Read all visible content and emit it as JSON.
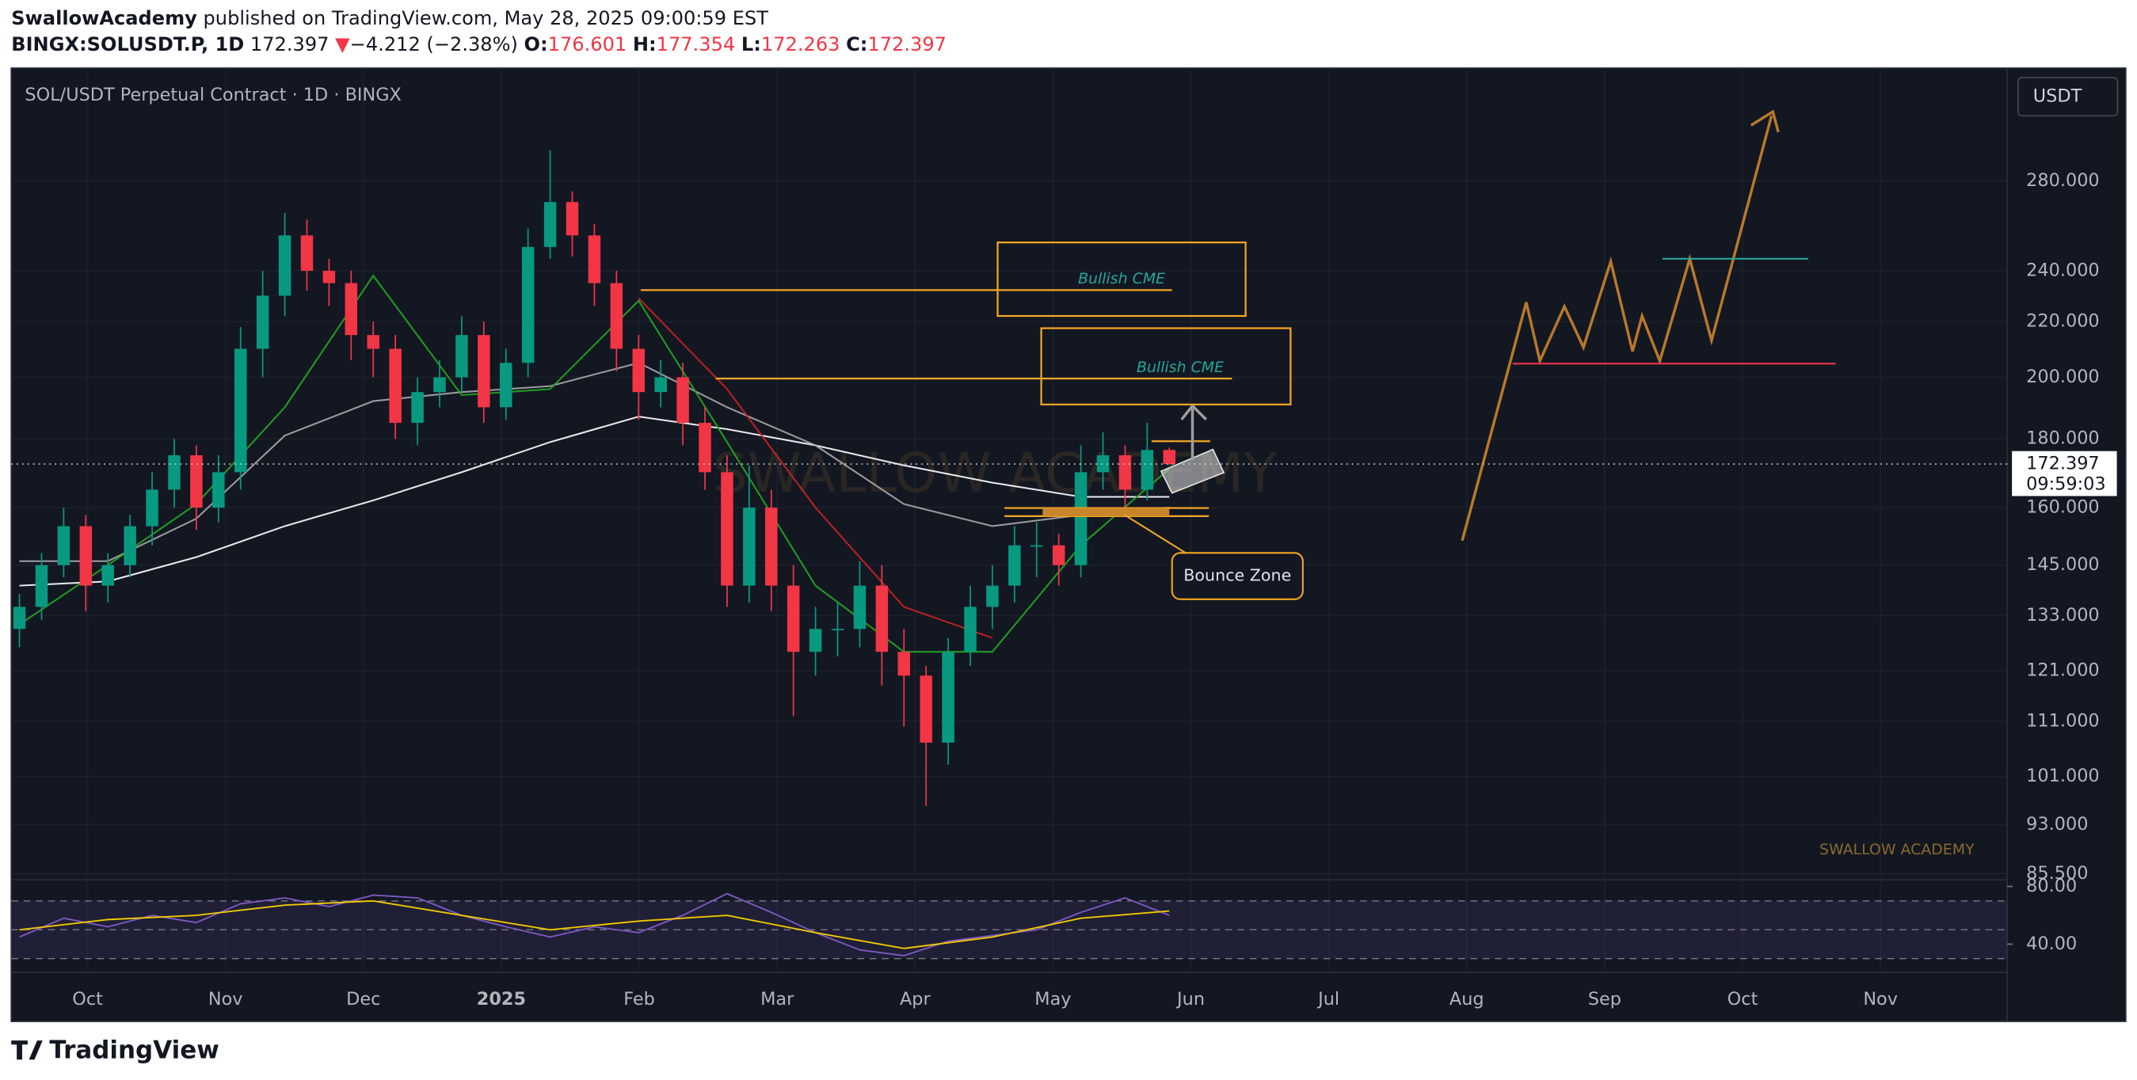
{
  "header": {
    "author": "SwallowAcademy",
    "published": "published on TradingView.com, May 28, 2025 09:00:59 EST",
    "symbol": "BINGX:SOLUSDT.P, 1D",
    "last": "172.397",
    "arrow": "▼",
    "change": "−4.212 (−2.38%)",
    "o_label": "O:",
    "o": "176.601",
    "h_label": "H:",
    "h": "177.354",
    "l_label": "L:",
    "l": "172.263",
    "c_label": "C:",
    "c": "172.397"
  },
  "footer": {
    "brand": "TradingView"
  },
  "chart_data": {
    "type": "candlestick",
    "title": "SOL/USDT Perpetual Contract · 1D · BINGX",
    "currency": "USDT",
    "log_scale": true,
    "grid": true,
    "up_color": "#089981",
    "down_color": "#f23645",
    "ylim": [
      84.8,
      338
    ],
    "yticks": [
      {
        "value": 280,
        "label": "280.000"
      },
      {
        "value": 240,
        "label": "240.000"
      },
      {
        "value": 220,
        "label": "220.000"
      },
      {
        "value": 200,
        "label": "200.000"
      },
      {
        "value": 180,
        "label": "180.000"
      },
      {
        "value": 160,
        "label": "160.000"
      },
      {
        "value": 145,
        "label": "145.000"
      },
      {
        "value": 133,
        "label": "133.000"
      },
      {
        "value": 121,
        "label": "121.000"
      },
      {
        "value": 111,
        "label": "111.000"
      },
      {
        "value": 101,
        "label": "101.000"
      },
      {
        "value": 93,
        "label": "93.000"
      },
      {
        "value": 85.5,
        "label": "85.500"
      }
    ],
    "xticks": [
      {
        "value": "2024-10",
        "label": "Oct"
      },
      {
        "value": "2024-11",
        "label": "Nov"
      },
      {
        "value": "2024-12",
        "label": "Dec"
      },
      {
        "value": "2025-01",
        "label": "2025"
      },
      {
        "value": "2025-02",
        "label": "Feb"
      },
      {
        "value": "2025-03",
        "label": "Mar"
      },
      {
        "value": "2025-04",
        "label": "Apr"
      },
      {
        "value": "2025-05",
        "label": "May"
      },
      {
        "value": "2025-06",
        "label": "Jun"
      },
      {
        "value": "2025-07",
        "label": "Jul"
      },
      {
        "value": "2025-08",
        "label": "Aug"
      },
      {
        "value": "2025-09",
        "label": "Sep"
      },
      {
        "value": "2025-10",
        "label": "Oct"
      },
      {
        "value": "2025-11",
        "label": "Nov"
      }
    ],
    "open": [
      130,
      135,
      145,
      155,
      140,
      145,
      155,
      165,
      175,
      160,
      170,
      210,
      230,
      255,
      240,
      235,
      215,
      210,
      185,
      195,
      200,
      215,
      190,
      205,
      250,
      270,
      255,
      235,
      210,
      195,
      200,
      185,
      170,
      140,
      160,
      140,
      125,
      130,
      130,
      140,
      125,
      120,
      107,
      125,
      135,
      140,
      150,
      150,
      145,
      170,
      175,
      165,
      176.601
    ],
    "high": [
      138,
      148,
      160,
      158,
      148,
      158,
      170,
      180,
      178,
      175,
      218,
      240,
      265,
      262,
      245,
      240,
      220,
      215,
      200,
      206,
      222,
      220,
      210,
      258,
      295,
      275,
      260,
      240,
      215,
      206,
      205,
      190,
      175,
      172,
      165,
      145,
      135,
      136,
      146,
      145,
      130,
      122,
      128,
      140,
      145,
      155,
      156,
      153,
      178,
      182,
      178,
      185,
      177.354
    ],
    "low": [
      126,
      132,
      142,
      134,
      136,
      142,
      150,
      160,
      154,
      156,
      165,
      200,
      222,
      232,
      226,
      206,
      200,
      180,
      178,
      190,
      195,
      185,
      186,
      200,
      245,
      246,
      226,
      202,
      186,
      190,
      178,
      165,
      135,
      136,
      134,
      112,
      120,
      124,
      126,
      118,
      110,
      96,
      103,
      122,
      130,
      136,
      142,
      140,
      142,
      165,
      160,
      162,
      172.263
    ],
    "close": [
      135,
      145,
      155,
      140,
      145,
      155,
      165,
      175,
      160,
      170,
      210,
      230,
      255,
      240,
      235,
      215,
      210,
      185,
      195,
      200,
      215,
      190,
      205,
      250,
      270,
      255,
      235,
      210,
      195,
      200,
      185,
      170,
      140,
      160,
      140,
      125,
      130,
      130,
      140,
      125,
      120,
      107,
      125,
      135,
      140,
      150,
      150,
      145,
      170,
      175,
      165,
      176.6,
      172.397
    ],
    "moving_averages": [
      {
        "color": "#ffffff",
        "values": [
          140,
          141,
          147,
          155,
          162,
          170,
          179,
          187,
          183,
          178,
          172,
          167,
          163,
          163
        ]
      },
      {
        "color": "#a8a8a8",
        "values": [
          146,
          146,
          157,
          181,
          192,
          195,
          197,
          205,
          190,
          178,
          161,
          155,
          158,
          160
        ]
      },
      {
        "color": "#22aa22",
        "values": [
          131,
          145,
          161,
          190,
          238,
          194,
          196,
          228,
          179,
          140,
          125,
          125,
          150,
          171
        ]
      },
      {
        "color": "#cc2222",
        "values": [
          null,
          null,
          null,
          null,
          null,
          null,
          null,
          229,
          196,
          160,
          135,
          128,
          null,
          null
        ]
      }
    ],
    "current_price": {
      "value": 172.397,
      "label": "172.397"
    },
    "countdown": "09:59:03",
    "annotations": {
      "cme_1": "Bullish CME",
      "cme_2": "Bullish CME",
      "bounce": "Bounce Zone",
      "watermark": "SWALLOW ACADEMY",
      "signature": "SWALLOW ACADEMY"
    },
    "rsi": {
      "ylim": [
        22.3,
        84.6
      ],
      "yticks": [
        {
          "value": 80,
          "label": "80.00"
        },
        {
          "value": 40,
          "label": "40.00"
        }
      ],
      "levels": [
        70,
        50,
        30
      ],
      "series": [
        {
          "color": "#7e57c2",
          "values": [
            45,
            58,
            52,
            60,
            55,
            68,
            72,
            66,
            74,
            72,
            60,
            52,
            45,
            52,
            48,
            60,
            75,
            62,
            48,
            36,
            32,
            42,
            46,
            50,
            62,
            72,
            60
          ]
        },
        {
          "color": "#f0c800",
          "values": [
            50,
            57,
            60,
            67,
            70,
            60,
            50,
            56,
            60,
            48,
            37,
            45,
            58,
            63
          ]
        }
      ]
    }
  }
}
